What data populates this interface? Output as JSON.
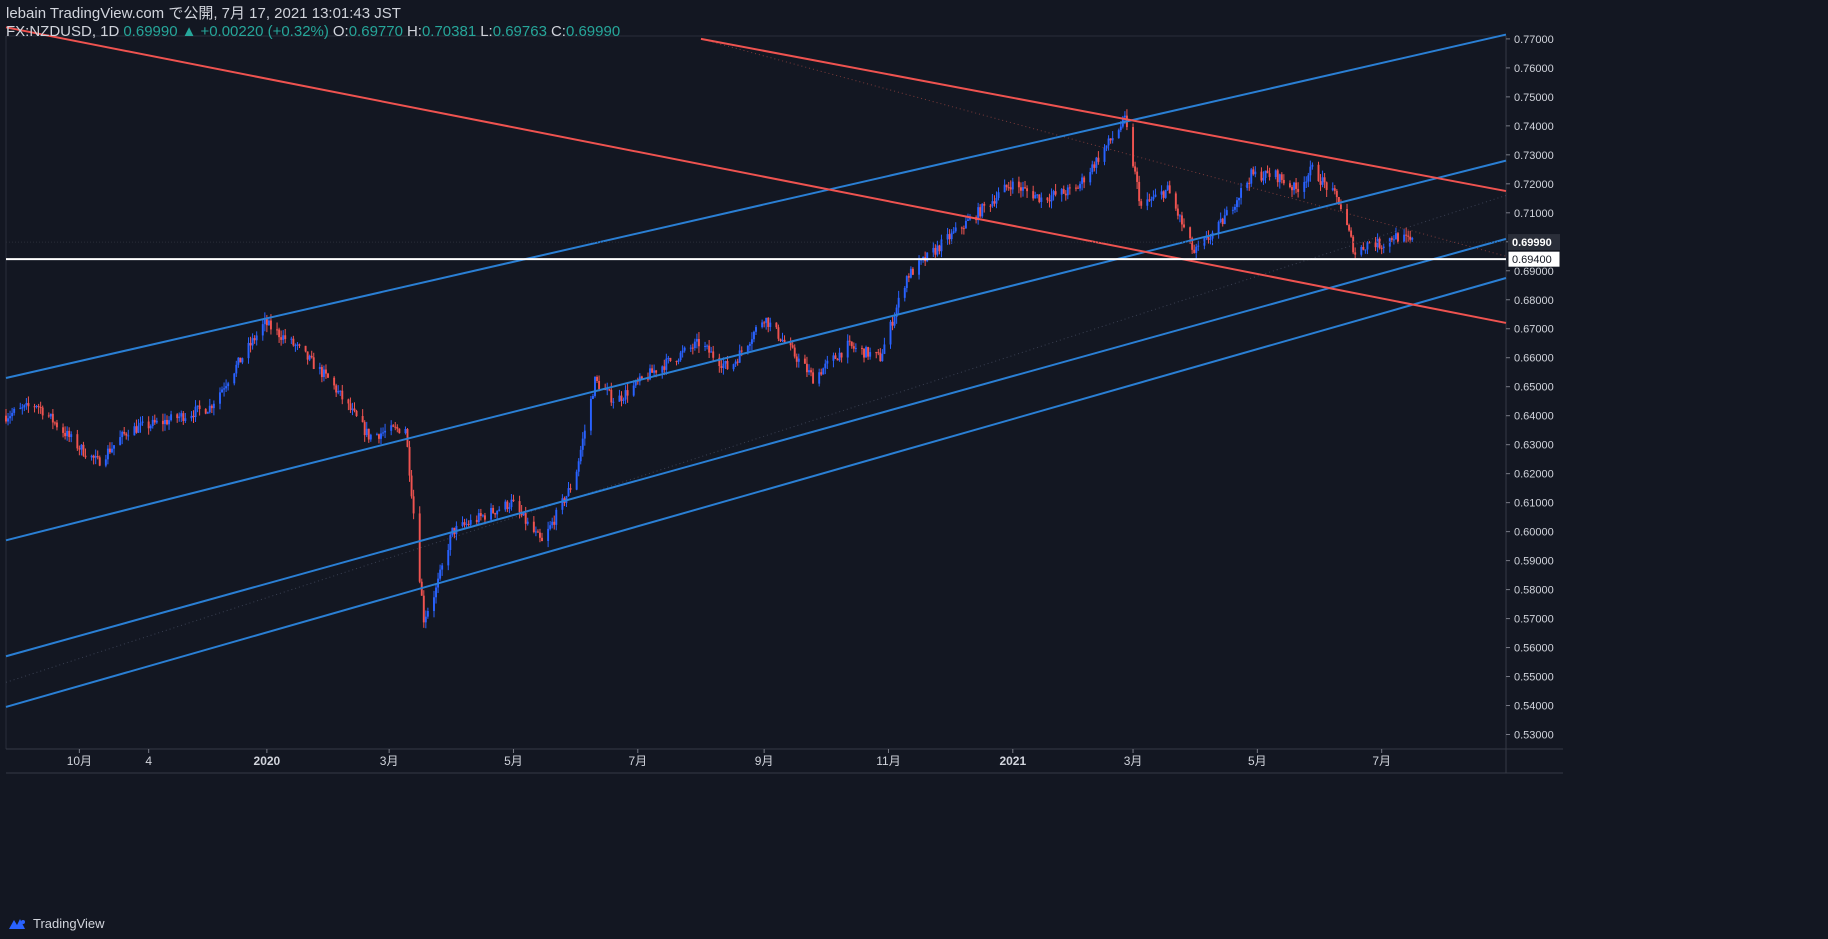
{
  "header": {
    "line1": "lebain TradingView.com で公開, 7月 17, 2021 13:01:43 JST",
    "symbol": "FX:NZDUSD, 1D",
    "last": "0.69990",
    "change": "+0.00220 (+0.32%)",
    "o_label": "O:",
    "o_value": "0.69770",
    "h_label": "H:",
    "h_value": "0.70381",
    "l_label": "L:",
    "l_value": "0.69763",
    "c_label": "C:",
    "c_value": "0.69990"
  },
  "footer": {
    "brand": "TradingView"
  },
  "colors": {
    "background": "#131722",
    "up": "#2962ff",
    "down": "#ef5350",
    "channel": "#2a7fd4",
    "resistance": "#ef5350",
    "hline": "#ffffff",
    "axis_text": "#d1d4dc",
    "header_values": "#26a69a"
  },
  "chart_data": {
    "type": "candlestick",
    "symbol": "FX:NZDUSD",
    "interval": "1D",
    "ylim": [
      0.525,
      0.771
    ],
    "y_ticks": [
      "0.53000",
      "0.54000",
      "0.55000",
      "0.56000",
      "0.57000",
      "0.58000",
      "0.59000",
      "0.60000",
      "0.61000",
      "0.62000",
      "0.63000",
      "0.64000",
      "0.65000",
      "0.66000",
      "0.67000",
      "0.68000",
      "0.69000",
      "0.70000",
      "0.71000",
      "0.72000",
      "0.73000",
      "0.74000",
      "0.75000",
      "0.76000",
      "0.77000"
    ],
    "y_tick_values": [
      0.53,
      0.54,
      0.55,
      0.56,
      0.57,
      0.58,
      0.59,
      0.6,
      0.61,
      0.62,
      0.63,
      0.64,
      0.65,
      0.66,
      0.67,
      0.68,
      0.69,
      0.7,
      0.71,
      0.72,
      0.73,
      0.74,
      0.75,
      0.76,
      0.77
    ],
    "x_range": [
      "2019-08-26",
      "2021-08-31"
    ],
    "x_ticks": [
      {
        "date": "2019-10-01",
        "label": "10月",
        "bold": false
      },
      {
        "date": "2019-11-04",
        "label": "4",
        "bold": false
      },
      {
        "date": "2020-01-01",
        "label": "2020",
        "bold": true
      },
      {
        "date": "2020-03-01",
        "label": "3月",
        "bold": false
      },
      {
        "date": "2020-05-01",
        "label": "5月",
        "bold": false
      },
      {
        "date": "2020-07-01",
        "label": "7月",
        "bold": false
      },
      {
        "date": "2020-09-01",
        "label": "9月",
        "bold": false
      },
      {
        "date": "2020-11-01",
        "label": "11月",
        "bold": false
      },
      {
        "date": "2021-01-01",
        "label": "2021",
        "bold": true
      },
      {
        "date": "2021-03-01",
        "label": "3月",
        "bold": false
      },
      {
        "date": "2021-05-01",
        "label": "5月",
        "bold": false
      },
      {
        "date": "2021-07-01",
        "label": "7月",
        "bold": false
      }
    ],
    "price_path": [
      [
        "2019-08-26",
        0.64
      ],
      [
        "2019-09-10",
        0.644
      ],
      [
        "2019-10-01",
        0.629
      ],
      [
        "2019-10-10",
        0.624
      ],
      [
        "2019-10-25",
        0.635
      ],
      [
        "2019-11-12",
        0.638
      ],
      [
        "2019-11-25",
        0.641
      ],
      [
        "2019-12-04",
        0.643
      ],
      [
        "2019-12-31",
        0.672
      ],
      [
        "2020-01-15",
        0.664
      ],
      [
        "2020-02-01",
        0.652
      ],
      [
        "2020-02-20",
        0.633
      ],
      [
        "2020-03-09",
        0.636
      ],
      [
        "2020-03-18",
        0.57
      ],
      [
        "2020-03-24",
        0.58
      ],
      [
        "2020-04-01",
        0.6
      ],
      [
        "2020-04-15",
        0.605
      ],
      [
        "2020-04-30",
        0.61
      ],
      [
        "2020-05-15",
        0.596
      ],
      [
        "2020-05-31",
        0.618
      ],
      [
        "2020-06-10",
        0.652
      ],
      [
        "2020-06-20",
        0.645
      ],
      [
        "2020-07-10",
        0.656
      ],
      [
        "2020-07-31",
        0.665
      ],
      [
        "2020-08-15",
        0.656
      ],
      [
        "2020-09-01",
        0.674
      ],
      [
        "2020-09-25",
        0.653
      ],
      [
        "2020-10-12",
        0.664
      ],
      [
        "2020-10-28",
        0.66
      ],
      [
        "2020-11-10",
        0.688
      ],
      [
        "2020-11-30",
        0.701
      ],
      [
        "2020-12-15",
        0.71
      ],
      [
        "2020-12-31",
        0.72
      ],
      [
        "2021-01-15",
        0.715
      ],
      [
        "2021-02-01",
        0.718
      ],
      [
        "2021-02-25",
        0.742
      ],
      [
        "2021-03-05",
        0.712
      ],
      [
        "2021-03-18",
        0.718
      ],
      [
        "2021-03-31",
        0.696
      ],
      [
        "2021-04-12",
        0.705
      ],
      [
        "2021-04-28",
        0.723
      ],
      [
        "2021-05-10",
        0.723
      ],
      [
        "2021-05-20",
        0.718
      ],
      [
        "2021-05-28",
        0.725
      ],
      [
        "2021-06-10",
        0.714
      ],
      [
        "2021-06-18",
        0.696
      ],
      [
        "2021-06-25",
        0.7
      ],
      [
        "2021-07-01",
        0.699
      ],
      [
        "2021-07-07",
        0.702
      ],
      [
        "2021-07-16",
        0.6999
      ]
    ],
    "channel_lines": [
      {
        "from": [
          "2019-08-26",
          0.653
        ],
        "to": [
          "2021-08-31",
          0.7715
        ]
      },
      {
        "from": [
          "2019-08-26",
          0.597
        ],
        "to": [
          "2021-08-31",
          0.728
        ]
      },
      {
        "from": [
          "2019-08-26",
          0.557
        ],
        "to": [
          "2021-08-31",
          0.701
        ]
      },
      {
        "from": [
          "2019-08-26",
          0.5395
        ],
        "to": [
          "2021-08-31",
          0.6875
        ]
      }
    ],
    "resistance_lines": [
      {
        "from": [
          "2019-08-26",
          0.774
        ],
        "to": [
          "2021-08-31",
          0.672
        ]
      },
      {
        "from": [
          "2020-08-01",
          0.77
        ],
        "to": [
          "2021-08-31",
          0.7175
        ]
      }
    ],
    "hline": {
      "value": 0.694,
      "label": "0.69400"
    },
    "last_price": {
      "value": 0.6999,
      "label": "0.69990"
    }
  }
}
